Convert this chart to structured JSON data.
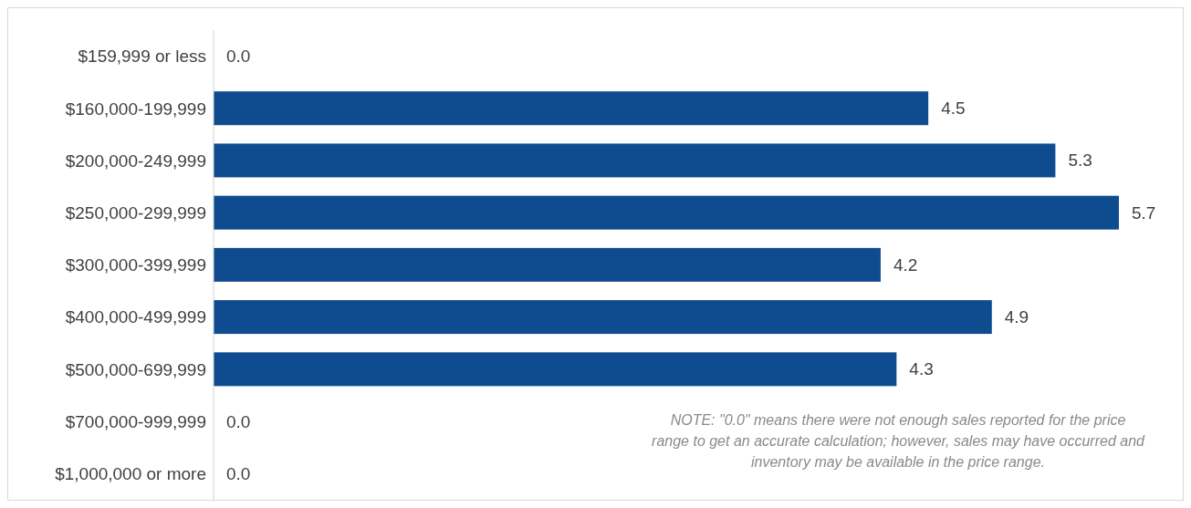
{
  "chart_data": {
    "type": "bar",
    "orientation": "horizontal",
    "categories": [
      "$159,999 or less",
      "$160,000-199,999",
      "$200,000-249,999",
      "$250,000-299,999",
      "$300,000-399,999",
      "$400,000-499,999",
      "$500,000-699,999",
      "$700,000-999,999",
      "$1,000,000 or more"
    ],
    "values": [
      0,
      4.5,
      5.3,
      5.7,
      4.2,
      4.9,
      4.3,
      0,
      0
    ],
    "value_labels": [
      "0.0",
      "4.5",
      "5.3",
      "5.7",
      "4.2",
      "4.9",
      "4.3",
      "0.0",
      "0.0"
    ],
    "color": "#0f4c8f",
    "grid": false,
    "legend": false,
    "tick_labels": "y",
    "annotations": [
      "NOTE: \"0.0\" means there were not enough sales reported for the price range to get an accurate calculation;  however, sales may have occurred and inventory may be available in the price range."
    ]
  }
}
